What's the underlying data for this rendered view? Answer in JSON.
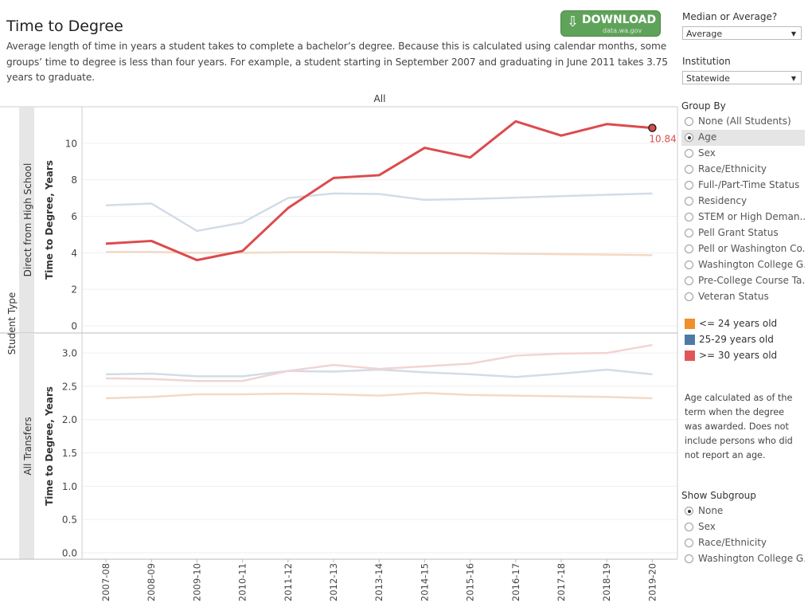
{
  "header": {
    "title": "Time to Degree",
    "description": "Average length of time in years a student takes to complete a bachelor’s degree.  Because this is calculated using calendar months, some groups’ time to degree is less than four years.  For example, a student starting in September 2007 and graduating in June 2011 takes 3.75 years to graduate.",
    "download_label": "DOWNLOAD",
    "download_sub": "data.wa.gov",
    "download_icon": "download-arrow-icon"
  },
  "controls": {
    "median_label": "Median or Average?",
    "median_value": "Average",
    "institution_label": "Institution",
    "institution_value": "Statewide",
    "group_by_label": "Group By",
    "group_by_options": [
      "None (All Students)",
      "Age",
      "Sex",
      "Race/Ethnicity",
      "Full-/Part-Time Status",
      "Residency",
      "STEM or High Deman...",
      "Pell Grant Status",
      "Pell or Washington Co...",
      "Washington College G...",
      "Pre-College Course Ta...",
      "Veteran Status"
    ],
    "group_by_selected": "Age",
    "subgroup_label": "Show Subgroup",
    "subgroup_options": [
      "None",
      "Sex",
      "Race/Ethnicity",
      "Washington College G..."
    ],
    "subgroup_selected": "None"
  },
  "legend": [
    {
      "label": "<= 24 years old",
      "color": "#f28e2b"
    },
    {
      "label": "25-29 years old",
      "color": "#4e79a7"
    },
    {
      "label": ">= 30 years old",
      "color": "#e15759"
    }
  ],
  "note": "Age calculated as of the term when the degree was awarded.  Does not include persons who did not report an age.",
  "chart_data": {
    "type": "line",
    "column_header": "All",
    "row_axis_title": "Student Type",
    "x": [
      "2007-08",
      "2008-09",
      "2009-10",
      "2010-11",
      "2011-12",
      "2012-13",
      "2013-14",
      "2014-15",
      "2015-16",
      "2016-17",
      "2017-18",
      "2018-19",
      "2019-20"
    ],
    "panels": [
      {
        "name": "Direct from High School",
        "ylabel": "Time to Degree, Years",
        "ylim": [
          0,
          12
        ],
        "yticks": [
          0,
          2,
          4,
          6,
          8,
          10
        ],
        "tick_format": 0,
        "series": [
          {
            "name": "<= 24 years old",
            "color": "#f4d9c4",
            "values": [
              4.05,
              4.05,
              4.0,
              4.0,
              4.03,
              4.03,
              4.0,
              3.98,
              3.98,
              3.95,
              3.92,
              3.9,
              3.87
            ]
          },
          {
            "name": "25-29 years old",
            "color": "#d3dce6",
            "values": [
              6.6,
              6.7,
              5.2,
              5.65,
              7.0,
              7.25,
              7.22,
              6.9,
              6.95,
              7.02,
              7.1,
              7.18,
              7.25
            ]
          },
          {
            "name": ">= 30 years old",
            "color": "#dc4b4d",
            "values": [
              4.5,
              4.65,
              3.6,
              4.1,
              6.45,
              8.1,
              8.25,
              9.75,
              9.22,
              11.2,
              10.42,
              11.05,
              10.84
            ]
          }
        ],
        "highlight": {
          "series": 2,
          "index": 12,
          "label": "10.84"
        }
      },
      {
        "name": "All Transfers",
        "ylabel": "Time to Degree, Years",
        "ylim": [
          0,
          3.3
        ],
        "yticks": [
          0.0,
          0.5,
          1.0,
          1.5,
          2.0,
          2.5,
          3.0
        ],
        "tick_format": 1,
        "series": [
          {
            "name": "<= 24 years old",
            "color": "#f4d9c4",
            "values": [
              2.32,
              2.34,
              2.38,
              2.38,
              2.39,
              2.38,
              2.36,
              2.4,
              2.37,
              2.36,
              2.35,
              2.34,
              2.32
            ]
          },
          {
            "name": "25-29 years old",
            "color": "#d3dce6",
            "values": [
              2.68,
              2.69,
              2.65,
              2.65,
              2.73,
              2.72,
              2.75,
              2.71,
              2.68,
              2.64,
              2.69,
              2.75,
              2.68
            ]
          },
          {
            "name": ">= 30 years old",
            "color": "#f2d4d4",
            "values": [
              2.62,
              2.61,
              2.58,
              2.58,
              2.73,
              2.82,
              2.76,
              2.8,
              2.84,
              2.96,
              2.99,
              3.0,
              3.12
            ]
          }
        ]
      }
    ]
  }
}
